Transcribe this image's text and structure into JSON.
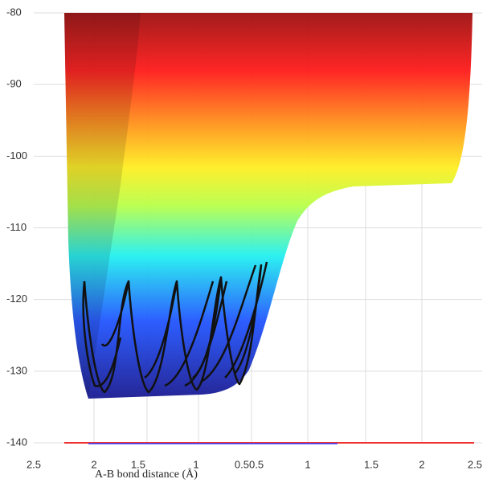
{
  "chart_data": {
    "type": "surface",
    "xlabel": "A-B bond distance (Å)",
    "x_tick_labels": [
      "2.5",
      "2",
      "1.5",
      "1",
      "0.50.5",
      "1",
      "1.5",
      "2",
      "2.5"
    ],
    "ylim": [
      -140,
      -80
    ],
    "yticks": [
      -80,
      -90,
      -100,
      -110,
      -120,
      -130,
      -140
    ],
    "grid": true
  }
}
